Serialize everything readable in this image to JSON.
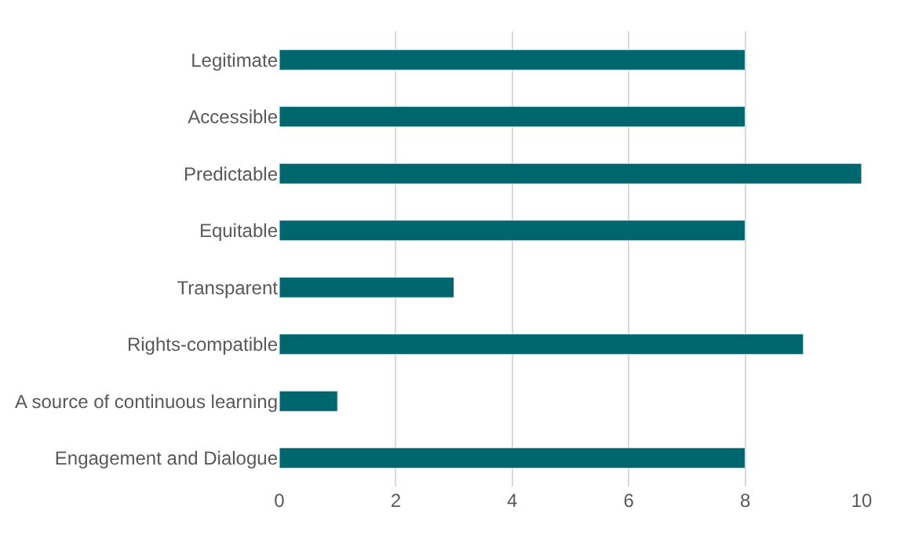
{
  "chart_data": {
    "type": "bar",
    "orientation": "horizontal",
    "categories": [
      "Legitimate",
      "Accessible",
      "Predictable",
      "Equitable",
      "Transparent",
      "Rights-compatible",
      "A source of continuous learning",
      "Engagement and Dialogue"
    ],
    "values": [
      8,
      8,
      10,
      8,
      3,
      9,
      1,
      8
    ],
    "color": "#00666e",
    "xlim": [
      0,
      10
    ],
    "xticks": [
      0,
      2,
      4,
      6,
      8,
      10
    ],
    "grid": "x"
  }
}
